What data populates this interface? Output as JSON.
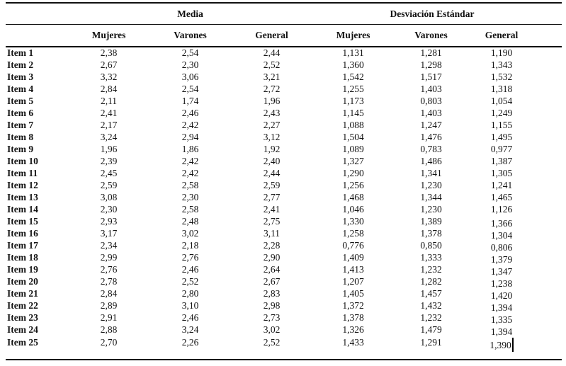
{
  "table": {
    "group_headers": [
      "Media",
      "Desviación Estándar"
    ],
    "sub_headers": [
      "Mujeres",
      "Varones",
      "General",
      "Mujeres",
      "Varones",
      "General"
    ],
    "rows": [
      {
        "label": "Item 1",
        "values": [
          "2,38",
          "2,54",
          "2,44",
          "1,131",
          "1,281",
          "1,190"
        ]
      },
      {
        "label": "Item 2",
        "values": [
          "2,67",
          "2,30",
          "2,52",
          "1,360",
          "1,298",
          "1,343"
        ]
      },
      {
        "label": "Item 3",
        "values": [
          "3,32",
          "3,06",
          "3,21",
          "1,542",
          "1,517",
          "1,532"
        ]
      },
      {
        "label": "Item 4",
        "values": [
          "2,84",
          "2,54",
          "2,72",
          "1,255",
          "1,403",
          "1,318"
        ]
      },
      {
        "label": "Item 5",
        "values": [
          "2,11",
          "1,74",
          "1,96",
          "1,173",
          "0,803",
          "1,054"
        ]
      },
      {
        "label": "Item 6",
        "values": [
          "2,41",
          "2,46",
          "2,43",
          "1,145",
          "1,403",
          "1,249"
        ]
      },
      {
        "label": "Item 7",
        "values": [
          "2,17",
          "2,42",
          "2,27",
          "1,088",
          "1,247",
          "1,155"
        ]
      },
      {
        "label": "Item 8",
        "values": [
          "3,24",
          "2,94",
          "3,12",
          "1,504",
          "1,476",
          "1,495"
        ]
      },
      {
        "label": "Item 9",
        "values": [
          "1,96",
          "1,86",
          "1,92",
          "1,089",
          "0,783",
          "0,977"
        ]
      },
      {
        "label": "Item 10",
        "values": [
          "2,39",
          "2,42",
          "2,40",
          "1,327",
          "1,486",
          "1,387"
        ]
      },
      {
        "label": "Item 11",
        "values": [
          "2,45",
          "2,42",
          "2,44",
          "1,290",
          "1,341",
          "1,305"
        ]
      },
      {
        "label": "Item 12",
        "values": [
          "2,59",
          "2,58",
          "2,59",
          "1,256",
          "1,230",
          "1,241"
        ]
      },
      {
        "label": "Item 13",
        "values": [
          "3,08",
          "2,30",
          "2,77",
          "1,468",
          "1,344",
          "1,465"
        ]
      },
      {
        "label": "Item 14",
        "values": [
          "2,30",
          "2,58",
          "2,41",
          "1,046",
          "1,230",
          "1,126"
        ]
      },
      {
        "label": "Item 15",
        "values": [
          "2,93",
          "2,48",
          "2,75",
          "1,330",
          "1,389",
          "1,366"
        ]
      },
      {
        "label": "Item 16",
        "values": [
          "3,17",
          "3,02",
          "3,11",
          "1,258",
          "1,378",
          "1,304"
        ]
      },
      {
        "label": "Item 17",
        "values": [
          "2,34",
          "2,18",
          "2,28",
          "0,776",
          "0,850",
          "0,806"
        ]
      },
      {
        "label": "Item 18",
        "values": [
          "2,99",
          "2,76",
          "2,90",
          "1,409",
          "1,333",
          "1,379"
        ]
      },
      {
        "label": "Item 19",
        "values": [
          "2,76",
          "2,46",
          "2,64",
          "1,413",
          "1,232",
          "1,347"
        ]
      },
      {
        "label": "Item 20",
        "values": [
          "2,78",
          "2,52",
          "2,67",
          "1,207",
          "1,282",
          "1,238"
        ]
      },
      {
        "label": "Item 21",
        "values": [
          "2,84",
          "2,80",
          "2,83",
          "1,405",
          "1,457",
          "1,420"
        ]
      },
      {
        "label": "Item 22",
        "values": [
          "2,89",
          "3,10",
          "2,98",
          "1,372",
          "1,432",
          "1,394"
        ]
      },
      {
        "label": "Item 23",
        "values": [
          "2,91",
          "2,46",
          "2,73",
          "1,378",
          "1,232",
          "1,335"
        ]
      },
      {
        "label": "Item 24",
        "values": [
          "2,88",
          "3,24",
          "3,02",
          "1,326",
          "1,479",
          "1,394"
        ]
      },
      {
        "label": "Item 25",
        "values": [
          "2,70",
          "2,26",
          "2,52",
          "1,433",
          "1,291",
          "1,390"
        ]
      }
    ],
    "shift_down_start_row": 14,
    "shift_down_column": 5,
    "cursor": {
      "present": true,
      "after_row": 24,
      "after_column": 5
    },
    "rule_color": "#101010"
  }
}
